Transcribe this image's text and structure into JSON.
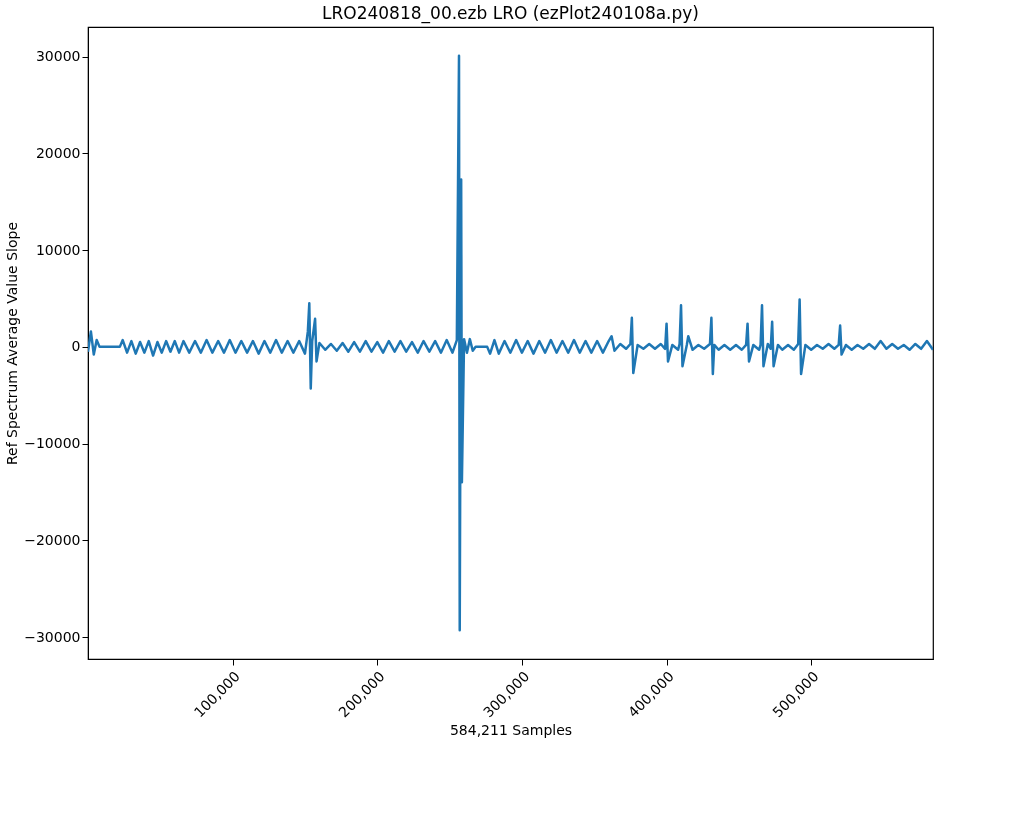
{
  "chart_data": {
    "type": "line",
    "title": "LRO240818_00.ezb           LRO          (ezPlot240108a.py)",
    "xlabel": "584,211 Samples",
    "ylabel": "Ref Spectrum Average Value Slope",
    "xlim": [
      0,
      584210
    ],
    "ylim": [
      -32270,
      33070
    ],
    "xticks": [
      {
        "value": 100000,
        "label": "100,000"
      },
      {
        "value": 200000,
        "label": "200,000"
      },
      {
        "value": 300000,
        "label": "300,000"
      },
      {
        "value": 400000,
        "label": "400,000"
      },
      {
        "value": 500000,
        "label": "500,000"
      }
    ],
    "yticks": [
      {
        "value": -30000,
        "label": "−30000"
      },
      {
        "value": -20000,
        "label": "−20000"
      },
      {
        "value": -10000,
        "label": "−10000"
      },
      0,
      10000,
      20000,
      30000
    ],
    "grid": false,
    "legend": false,
    "marker": "none",
    "line_style": "solid",
    "x": [
      0,
      2000,
      4000,
      6000,
      8000,
      22000,
      24000,
      27000,
      30000,
      33000,
      36000,
      39000,
      42000,
      45000,
      48000,
      51000,
      54000,
      57000,
      60000,
      63000,
      66000,
      70000,
      74000,
      78000,
      82000,
      86000,
      90000,
      94000,
      98000,
      102000,
      106000,
      110000,
      114000,
      118000,
      122000,
      126000,
      130000,
      134000,
      138000,
      142000,
      146000,
      150000,
      152000,
      153000,
      154000,
      155000,
      157000,
      158000,
      160000,
      164000,
      168000,
      172000,
      176000,
      180000,
      184000,
      188000,
      192000,
      196000,
      200000,
      204000,
      208000,
      212000,
      216000,
      220000,
      224000,
      228000,
      232000,
      236000,
      240000,
      244000,
      248000,
      252000,
      255000,
      256500,
      257000,
      258000,
      258500,
      260000,
      262000,
      264000,
      266000,
      268000,
      276000,
      278000,
      281000,
      284000,
      288000,
      292000,
      296000,
      300000,
      304000,
      308000,
      312000,
      316000,
      320000,
      324000,
      328000,
      332000,
      336000,
      340000,
      344000,
      348000,
      352000,
      356000,
      360000,
      362000,
      364000,
      368000,
      372000,
      375000,
      376000,
      377000,
      380000,
      384000,
      388000,
      392000,
      396000,
      399000,
      400000,
      401000,
      404000,
      408000,
      409000,
      410000,
      411000,
      414000,
      415000,
      418000,
      422000,
      426000,
      430000,
      431000,
      432000,
      433000,
      436000,
      440000,
      444000,
      448000,
      452000,
      455000,
      456000,
      457000,
      460000,
      464000,
      465000,
      466000,
      467000,
      470000,
      472000,
      473000,
      474000,
      477000,
      480000,
      484000,
      488000,
      491000,
      492000,
      493000,
      496000,
      500000,
      504000,
      508000,
      512000,
      516000,
      519000,
      520000,
      521000,
      524000,
      528000,
      532000,
      536000,
      540000,
      544000,
      548000,
      552000,
      556000,
      560000,
      564000,
      568000,
      572000,
      576000,
      580000,
      584210
    ],
    "series": [
      {
        "color": "#1f77b4",
        "values": [
          -500,
          1600,
          -800,
          700,
          0,
          0,
          700,
          -600,
          600,
          -700,
          500,
          -600,
          600,
          -900,
          500,
          -600,
          600,
          -500,
          600,
          -600,
          600,
          -600,
          600,
          -600,
          700,
          -600,
          600,
          -600,
          700,
          -600,
          600,
          -600,
          600,
          -700,
          600,
          -600,
          700,
          -600,
          600,
          -600,
          600,
          -700,
          1600,
          4500,
          -4300,
          600,
          2900,
          -1500,
          400,
          -300,
          300,
          -400,
          400,
          -500,
          500,
          -500,
          600,
          -500,
          500,
          -600,
          600,
          -500,
          600,
          -500,
          500,
          -600,
          600,
          -500,
          600,
          -600,
          700,
          -600,
          700,
          30100,
          -29300,
          17300,
          -14000,
          800,
          -600,
          800,
          -400,
          0,
          0,
          -700,
          700,
          -700,
          600,
          -600,
          700,
          -600,
          600,
          -700,
          600,
          -600,
          700,
          -600,
          600,
          -600,
          700,
          -600,
          600,
          -600,
          600,
          -600,
          600,
          1100,
          -400,
          300,
          -200,
          300,
          3000,
          -2700,
          200,
          -200,
          300,
          -200,
          300,
          -200,
          2400,
          -1500,
          200,
          -300,
          300,
          4300,
          -2000,
          200,
          1100,
          -300,
          200,
          -200,
          300,
          3000,
          -2800,
          200,
          -300,
          200,
          -300,
          200,
          -300,
          200,
          2400,
          -1500,
          200,
          -300,
          200,
          4300,
          -2000,
          300,
          -200,
          2600,
          -2000,
          200,
          -300,
          200,
          -300,
          300,
          4900,
          -2800,
          200,
          -300,
          200,
          -200,
          300,
          -200,
          200,
          2200,
          -800,
          200,
          -300,
          200,
          -200,
          300,
          -200,
          600,
          -200,
          300,
          -200,
          200,
          -300,
          300,
          -200,
          600,
          -300
        ]
      }
    ]
  }
}
